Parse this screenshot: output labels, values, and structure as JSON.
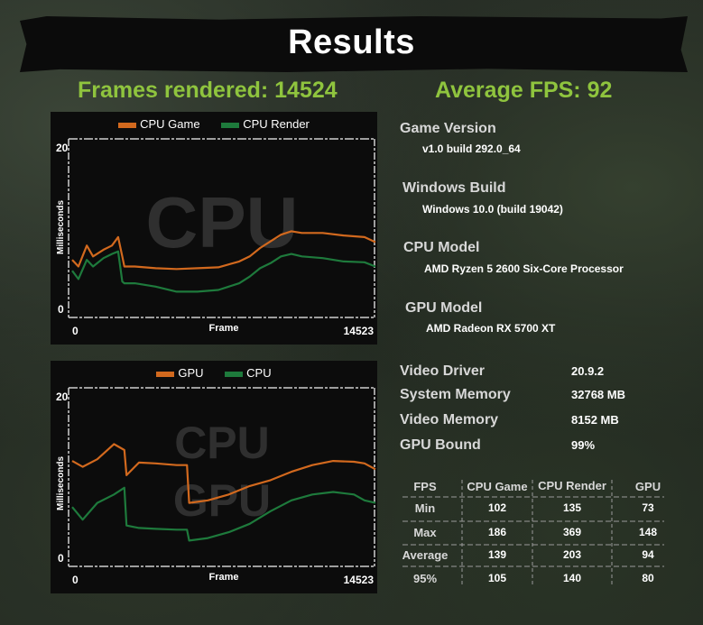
{
  "title": "Results",
  "frames_rendered": "Frames rendered: 14524",
  "average_fps": "Average FPS: 92",
  "colors": {
    "orange": "#d2691e",
    "green": "#1e7a3c",
    "headline": "#8fc43e"
  },
  "info": {
    "game_version_label": "Game Version",
    "game_version_value": "v1.0 build 292.0_64",
    "windows_build_label": "Windows Build",
    "windows_build_value": "Windows 10.0 (build 19042)",
    "cpu_model_label": "CPU Model",
    "cpu_model_value": "AMD Ryzen 5 2600 Six-Core Processor",
    "gpu_model_label": "GPU Model",
    "gpu_model_value": "AMD Radeon RX 5700 XT",
    "video_driver_label": "Video Driver",
    "video_driver_value": "20.9.2",
    "system_memory_label": "System Memory",
    "system_memory_value": "32768 MB",
    "video_memory_label": "Video Memory",
    "video_memory_value": "8152 MB",
    "gpu_bound_label": "GPU Bound",
    "gpu_bound_value": "99%"
  },
  "fps_table": {
    "headers": [
      "FPS",
      "CPU Game",
      "CPU Render",
      "GPU"
    ],
    "rows": [
      {
        "label": "Min",
        "values": [
          "102",
          "135",
          "73"
        ]
      },
      {
        "label": "Max",
        "values": [
          "186",
          "369",
          "148"
        ]
      },
      {
        "label": "Average",
        "values": [
          "139",
          "203",
          "94"
        ]
      },
      {
        "label": "95%",
        "values": [
          "105",
          "140",
          "80"
        ]
      }
    ]
  },
  "chart_data": [
    {
      "type": "line",
      "watermark": "CPU",
      "legend": [
        "CPU Game",
        "CPU Render"
      ],
      "ylabel": "Milliseconds",
      "xlabel": "Frame",
      "xlim": [
        0,
        14523
      ],
      "ylim": [
        0,
        20
      ],
      "ytick_labels": [
        "20",
        "0"
      ],
      "xtick_labels": [
        "0",
        "14523"
      ],
      "x": [
        0,
        300,
        700,
        1000,
        1500,
        1900,
        2200,
        2400,
        2500,
        3000,
        4000,
        5000,
        6000,
        7000,
        8000,
        8500,
        9000,
        9500,
        10000,
        10500,
        11000,
        12000,
        13000,
        14000,
        14523
      ],
      "series": [
        {
          "name": "CPU Game",
          "color": "#d2691e",
          "values": [
            5.8,
            5.0,
            7.5,
            6.2,
            7.0,
            7.5,
            8.5,
            6.2,
            5.0,
            5.0,
            4.8,
            4.7,
            4.8,
            4.9,
            5.6,
            6.2,
            7.2,
            8.0,
            8.8,
            9.2,
            9.0,
            9.0,
            8.7,
            8.5,
            7.9
          ]
        },
        {
          "name": "CPU Render",
          "color": "#1e7a3c",
          "values": [
            4.5,
            3.5,
            5.8,
            5.0,
            6.0,
            6.5,
            6.8,
            3.2,
            3.0,
            3.0,
            2.6,
            2.0,
            2.0,
            2.2,
            3.0,
            3.8,
            4.8,
            5.4,
            6.2,
            6.5,
            6.2,
            6.0,
            5.6,
            5.5,
            5.0
          ]
        }
      ]
    },
    {
      "type": "line",
      "watermark": "CPU GPU",
      "legend": [
        "GPU",
        "CPU"
      ],
      "ylabel": "Milliseconds",
      "xlabel": "Frame",
      "xlim": [
        0,
        14523
      ],
      "ylim": [
        0,
        20
      ],
      "ytick_labels": [
        "20",
        "0"
      ],
      "xtick_labels": [
        "0",
        "14523"
      ],
      "x": [
        0,
        500,
        1200,
        2000,
        2500,
        2600,
        3200,
        4000,
        5000,
        5500,
        5600,
        6500,
        7500,
        8500,
        9500,
        10500,
        11500,
        12500,
        13500,
        14000,
        14523
      ],
      "series": [
        {
          "name": "GPU",
          "color": "#d2691e",
          "values": [
            11.5,
            10.8,
            11.7,
            13.5,
            12.8,
            9.8,
            11.3,
            11.2,
            11.0,
            11.0,
            6.5,
            6.8,
            7.5,
            8.5,
            9.2,
            10.2,
            11.0,
            11.5,
            11.4,
            11.2,
            10.5
          ]
        },
        {
          "name": "CPU",
          "color": "#1e7a3c",
          "values": [
            6.0,
            4.5,
            6.5,
            7.5,
            8.3,
            3.8,
            3.5,
            3.4,
            3.3,
            3.3,
            2.0,
            2.3,
            3.0,
            4.0,
            5.5,
            6.8,
            7.5,
            7.8,
            7.5,
            6.8,
            6.5
          ]
        }
      ]
    }
  ]
}
